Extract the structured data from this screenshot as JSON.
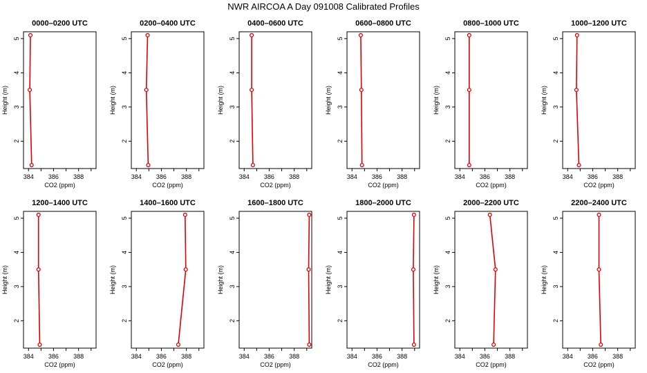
{
  "figure": {
    "title": "NWR AIRCOA A  Day 091008  Calibrated Profiles"
  },
  "colors": {
    "profile": "#dd0000",
    "axis": "#000000"
  },
  "chart_data": [
    {
      "type": "line",
      "title": "0000–0200 UTC",
      "xlabel": "CO2 (ppm)",
      "ylabel": "Height (m)",
      "xlim": [
        383.6,
        389.4
      ],
      "ylim": [
        1.2,
        5.2
      ],
      "xticks": [
        "384",
        "386",
        "388"
      ],
      "yticks": [
        "2",
        "3",
        "4",
        "5"
      ],
      "series": [
        {
          "x": [
            384.25,
            384.1,
            384.15
          ],
          "y": [
            1.3,
            3.5,
            5.1
          ]
        }
      ]
    },
    {
      "type": "line",
      "title": "0200–0400 UTC",
      "xlabel": "CO2 (ppm)",
      "ylabel": "Height (m)",
      "xlim": [
        383.6,
        389.4
      ],
      "ylim": [
        1.2,
        5.2
      ],
      "xticks": [
        "384",
        "386",
        "388"
      ],
      "yticks": [
        "2",
        "3",
        "4",
        "5"
      ],
      "series": [
        {
          "x": [
            384.95,
            384.8,
            384.9
          ],
          "y": [
            1.3,
            3.5,
            5.1
          ]
        }
      ]
    },
    {
      "type": "line",
      "title": "0400–0600 UTC",
      "xlabel": "CO2 (ppm)",
      "ylabel": "Height (m)",
      "xlim": [
        383.6,
        389.4
      ],
      "ylim": [
        1.2,
        5.2
      ],
      "xticks": [
        "384",
        "386",
        "388"
      ],
      "yticks": [
        "2",
        "3",
        "4",
        "5"
      ],
      "series": [
        {
          "x": [
            384.7,
            384.6,
            384.6
          ],
          "y": [
            1.3,
            3.5,
            5.1
          ]
        }
      ]
    },
    {
      "type": "line",
      "title": "0600–0800 UTC",
      "xlabel": "CO2 (ppm)",
      "ylabel": "Height (m)",
      "xlim": [
        383.6,
        389.4
      ],
      "ylim": [
        1.2,
        5.2
      ],
      "xticks": [
        "384",
        "386",
        "388"
      ],
      "yticks": [
        "2",
        "3",
        "4",
        "5"
      ],
      "series": [
        {
          "x": [
            384.8,
            384.75,
            384.7
          ],
          "y": [
            1.3,
            3.5,
            5.1
          ]
        }
      ]
    },
    {
      "type": "line",
      "title": "0800–1000 UTC",
      "xlabel": "CO2 (ppm)",
      "ylabel": "Height (m)",
      "xlim": [
        383.6,
        389.4
      ],
      "ylim": [
        1.2,
        5.2
      ],
      "xticks": [
        "384",
        "386",
        "388"
      ],
      "yticks": [
        "2",
        "3",
        "4",
        "5"
      ],
      "series": [
        {
          "x": [
            384.75,
            384.75,
            384.75
          ],
          "y": [
            1.3,
            3.5,
            5.1
          ]
        }
      ]
    },
    {
      "type": "line",
      "title": "1000–1200 UTC",
      "xlabel": "CO2 (ppm)",
      "ylabel": "Height (m)",
      "xlim": [
        383.6,
        389.4
      ],
      "ylim": [
        1.2,
        5.2
      ],
      "xticks": [
        "384",
        "386",
        "388"
      ],
      "yticks": [
        "2",
        "3",
        "4",
        "5"
      ],
      "series": [
        {
          "x": [
            384.9,
            384.7,
            384.75
          ],
          "y": [
            1.3,
            3.5,
            5.1
          ]
        }
      ]
    },
    {
      "type": "line",
      "title": "1200–1400 UTC",
      "xlabel": "CO2 (ppm)",
      "ylabel": "Height (m)",
      "xlim": [
        383.6,
        389.4
      ],
      "ylim": [
        1.2,
        5.2
      ],
      "xticks": [
        "384",
        "386",
        "388"
      ],
      "yticks": [
        "2",
        "3",
        "4",
        "5"
      ],
      "series": [
        {
          "x": [
            384.9,
            384.8,
            384.8
          ],
          "y": [
            1.3,
            3.5,
            5.1
          ]
        }
      ]
    },
    {
      "type": "line",
      "title": "1400–1600 UTC",
      "xlabel": "CO2 (ppm)",
      "ylabel": "Height (m)",
      "xlim": [
        383.6,
        389.4
      ],
      "ylim": [
        1.2,
        5.2
      ],
      "xticks": [
        "384",
        "386",
        "388"
      ],
      "yticks": [
        "2",
        "3",
        "4",
        "5"
      ],
      "series": [
        {
          "x": [
            387.35,
            387.95,
            387.9
          ],
          "y": [
            1.3,
            3.5,
            5.1
          ]
        }
      ]
    },
    {
      "type": "line",
      "title": "1600–1800 UTC",
      "xlabel": "CO2 (ppm)",
      "ylabel": "Height (m)",
      "xlim": [
        383.6,
        389.4
      ],
      "ylim": [
        1.2,
        5.2
      ],
      "xticks": [
        "384",
        "386",
        "388"
      ],
      "yticks": [
        "2",
        "3",
        "4",
        "5"
      ],
      "series": [
        {
          "x": [
            389.2,
            389.15,
            389.2
          ],
          "y": [
            1.3,
            3.5,
            5.1
          ]
        }
      ]
    },
    {
      "type": "line",
      "title": "1800–2000 UTC",
      "xlabel": "CO2 (ppm)",
      "ylabel": "Height (m)",
      "xlim": [
        383.6,
        389.4
      ],
      "ylim": [
        1.2,
        5.2
      ],
      "xticks": [
        "384",
        "386",
        "388"
      ],
      "yticks": [
        "2",
        "3",
        "4",
        "5"
      ],
      "series": [
        {
          "x": [
            388.95,
            388.9,
            388.95
          ],
          "y": [
            1.3,
            3.5,
            5.1
          ]
        }
      ]
    },
    {
      "type": "line",
      "title": "2000–2200 UTC",
      "xlabel": "CO2 (ppm)",
      "ylabel": "Height (m)",
      "xlim": [
        383.6,
        389.4
      ],
      "ylim": [
        1.2,
        5.2
      ],
      "xticks": [
        "384",
        "386",
        "388"
      ],
      "yticks": [
        "2",
        "3",
        "4",
        "5"
      ],
      "series": [
        {
          "x": [
            386.7,
            386.85,
            386.4
          ],
          "y": [
            1.3,
            3.5,
            5.1
          ]
        }
      ]
    },
    {
      "type": "line",
      "title": "2200–2400 UTC",
      "xlabel": "CO2 (ppm)",
      "ylabel": "Height (m)",
      "xlim": [
        383.6,
        389.4
      ],
      "ylim": [
        1.2,
        5.2
      ],
      "xticks": [
        "384",
        "386",
        "388"
      ],
      "yticks": [
        "2",
        "3",
        "4",
        "5"
      ],
      "series": [
        {
          "x": [
            386.65,
            386.5,
            386.5
          ],
          "y": [
            1.3,
            3.5,
            5.1
          ]
        }
      ]
    }
  ]
}
